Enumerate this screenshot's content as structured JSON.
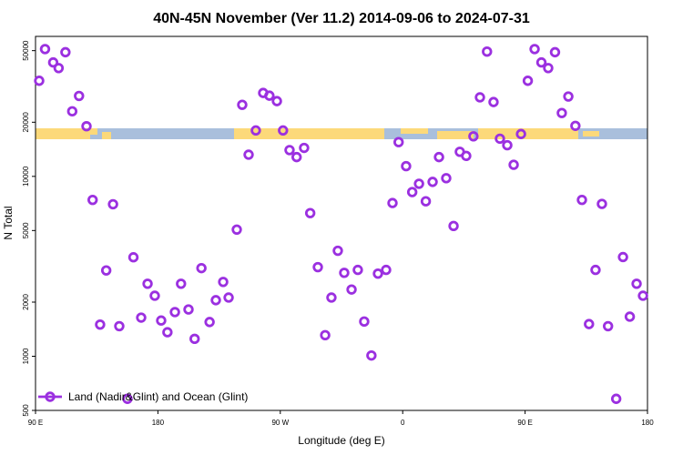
{
  "chart_data": {
    "type": "scatter",
    "title": "40N-45N November (Ver 11.2)   2014-09-06 to 2024-07-31",
    "x_label": "Longitude (deg E)",
    "y_label": "N Total",
    "y_log": true,
    "legend": "bottom-left",
    "xlim": [
      90,
      540
    ],
    "ylim": [
      500,
      60000
    ],
    "xticks": [
      {
        "value": 90,
        "label": "90 E"
      },
      180,
      {
        "value": 270,
        "label": "90 W"
      },
      {
        "value": 360,
        "label": "0"
      },
      {
        "value": 450,
        "label": "90 E"
      },
      {
        "value": 540,
        "label": "180"
      }
    ],
    "yticks": [
      500,
      1000,
      2000,
      5000,
      10000,
      20000,
      50000
    ],
    "series": [
      {
        "name": "Land (Nadir&Glint) and Ocean (Glint)",
        "color": "#9b30e0",
        "x": [
          92.7,
          97,
          103,
          107,
          112,
          117,
          122,
          127.5,
          132,
          137.5,
          142,
          147,
          151.6,
          157.6,
          162,
          167.7,
          172.4,
          177.7,
          182.4,
          187,
          192.5,
          197,
          202.5,
          207,
          212,
          218,
          222.6,
          228,
          232,
          238,
          242,
          246.7,
          252,
          257.4,
          262,
          267.5,
          272,
          276.8,
          282,
          287.5,
          292,
          297.6,
          303,
          307.6,
          312.3,
          317,
          322.4,
          327,
          331.7,
          337,
          341.8,
          347.8,
          352.5,
          357,
          362.5,
          367,
          372,
          377,
          382,
          386.7,
          392,
          397.4,
          402,
          406.7,
          412,
          416.8,
          422,
          426.8,
          431.5,
          436.9,
          441.6,
          447,
          452,
          457,
          462,
          467,
          472,
          477,
          481.8,
          487,
          491.8,
          497,
          501.8,
          506.5,
          511,
          517,
          522,
          527,
          532,
          536.7
        ],
        "values": [
          34000,
          51000,
          43000,
          40000,
          49000,
          23000,
          28000,
          19000,
          7400,
          1500,
          3000,
          7000,
          1470,
          580,
          3550,
          1640,
          2530,
          2170,
          1580,
          1360,
          1760,
          2530,
          1820,
          1250,
          3090,
          1550,
          2050,
          2590,
          2120,
          5060,
          25000,
          13200,
          18000,
          29100,
          28100,
          26200,
          18000,
          14000,
          12800,
          14400,
          6250,
          3130,
          1310,
          2120,
          3860,
          2910,
          2350,
          3020,
          1560,
          1010,
          2880,
          3020,
          7110,
          15500,
          11400,
          8180,
          9100,
          7270,
          9320,
          12800,
          9770,
          5300,
          13700,
          13000,
          16700,
          27500,
          49400,
          25900,
          16200,
          14900,
          11600,
          17200,
          34000,
          51000,
          43000,
          40000,
          49000,
          22500,
          27800,
          19100,
          7400,
          1510,
          3020,
          7030,
          1470,
          580,
          3560,
          1660,
          2530,
          2170
        ]
      }
    ]
  }
}
